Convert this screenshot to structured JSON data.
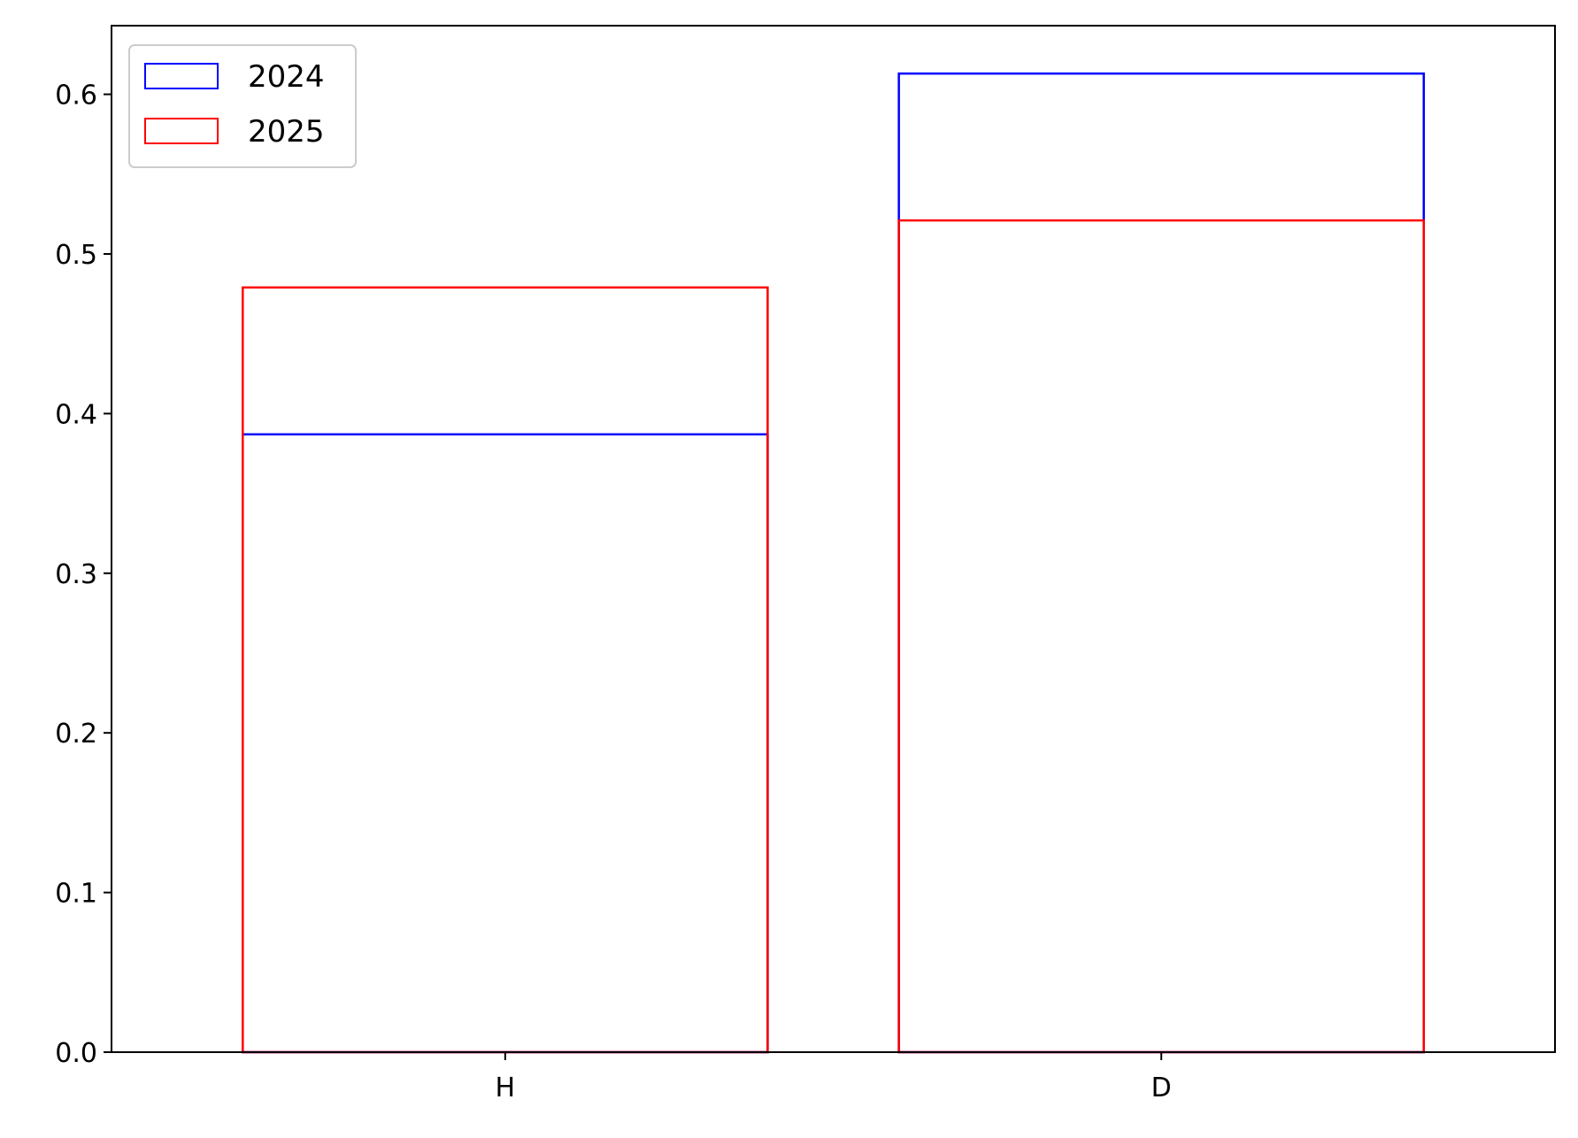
{
  "chart_data": {
    "type": "bar",
    "categories": [
      "H",
      "D"
    ],
    "series": [
      {
        "name": "2024",
        "values": [
          0.387,
          0.613
        ],
        "color": "#0000ff"
      },
      {
        "name": "2025",
        "values": [
          0.479,
          0.521
        ],
        "color": "#ff0000"
      }
    ],
    "bar_style": "outline-overlaid",
    "title": "",
    "xlabel": "",
    "ylabel": "",
    "ylim": [
      0,
      0.643
    ],
    "yticks": [
      0.0,
      0.1,
      0.2,
      0.3,
      0.4,
      0.5,
      0.6
    ],
    "ytick_labels": [
      "0.0",
      "0.1",
      "0.2",
      "0.3",
      "0.4",
      "0.5",
      "0.6"
    ],
    "grid": false,
    "legend": {
      "position": "top-left",
      "entries": [
        "2024",
        "2025"
      ]
    }
  }
}
